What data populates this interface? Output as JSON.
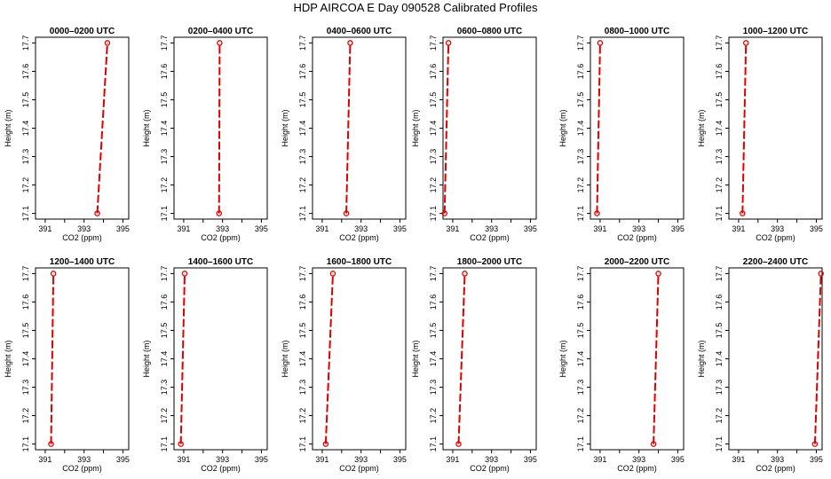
{
  "title": "HDP AIRCOA E  Day 090528  Calibrated Profiles",
  "chart_data": {
    "type": "line",
    "xlabel": "CO2 (ppm)",
    "ylabel": "Height (m)",
    "xlim": [
      390.5,
      395.3
    ],
    "ylim": [
      17.08,
      17.72
    ],
    "x_ticks": [
      391,
      393,
      395
    ],
    "x_minor_ticks": [
      392,
      394
    ],
    "y_ticks": [
      17.1,
      17.2,
      17.3,
      17.4,
      17.5,
      17.6,
      17.7
    ],
    "line_color": "#dd0000",
    "marker_color": "#dd0000",
    "panels": [
      {
        "title": "0000–0200 UTC",
        "points": [
          {
            "x": 393.68,
            "y": 17.1
          },
          {
            "x": 394.2,
            "y": 17.7
          }
        ]
      },
      {
        "title": "0200–0400 UTC",
        "points": [
          {
            "x": 392.82,
            "y": 17.1
          },
          {
            "x": 392.85,
            "y": 17.7
          }
        ]
      },
      {
        "title": "0400–0600 UTC",
        "points": [
          {
            "x": 392.24,
            "y": 17.1
          },
          {
            "x": 392.44,
            "y": 17.7
          }
        ]
      },
      {
        "title": "0600–0800 UTC",
        "points": [
          {
            "x": 390.58,
            "y": 17.1
          },
          {
            "x": 390.78,
            "y": 17.7
          }
        ]
      },
      {
        "title": "0800–1000 UTC",
        "points": [
          {
            "x": 390.84,
            "y": 17.1
          },
          {
            "x": 391.0,
            "y": 17.7
          }
        ]
      },
      {
        "title": "1000–1200 UTC",
        "points": [
          {
            "x": 391.2,
            "y": 17.1
          },
          {
            "x": 391.38,
            "y": 17.7
          }
        ]
      },
      {
        "title": "1200–1400 UTC",
        "points": [
          {
            "x": 391.3,
            "y": 17.1
          },
          {
            "x": 391.42,
            "y": 17.7
          }
        ]
      },
      {
        "title": "1400–1600 UTC",
        "points": [
          {
            "x": 390.85,
            "y": 17.1
          },
          {
            "x": 391.05,
            "y": 17.7
          }
        ]
      },
      {
        "title": "1600–1800 UTC",
        "points": [
          {
            "x": 391.18,
            "y": 17.1
          },
          {
            "x": 391.55,
            "y": 17.7
          }
        ]
      },
      {
        "title": "1800–2000 UTC",
        "points": [
          {
            "x": 391.3,
            "y": 17.1
          },
          {
            "x": 391.62,
            "y": 17.7
          }
        ]
      },
      {
        "title": "2000–2200 UTC",
        "points": [
          {
            "x": 393.75,
            "y": 17.1
          },
          {
            "x": 394.0,
            "y": 17.7
          }
        ]
      },
      {
        "title": "2200–2400 UTC",
        "points": [
          {
            "x": 394.93,
            "y": 17.1
          },
          {
            "x": 395.24,
            "y": 17.7
          }
        ]
      }
    ]
  }
}
